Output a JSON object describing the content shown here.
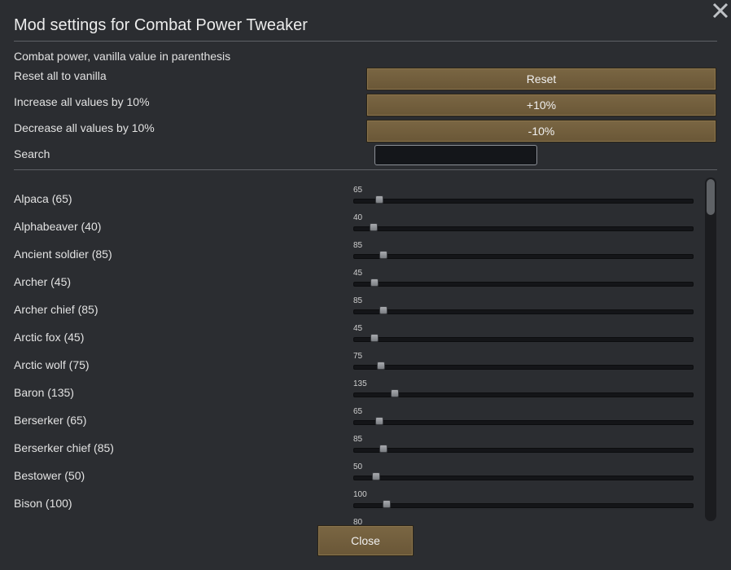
{
  "dialog": {
    "title": "Mod settings for Combat Power Tweaker",
    "subtitle": "Combat power, vanilla value in parenthesis"
  },
  "controls": {
    "reset_label": "Reset all to vanilla",
    "reset_button": "Reset",
    "increase_label": "Increase all values by 10%",
    "increase_button": "+10%",
    "decrease_label": "Decrease all values by 10%",
    "decrease_button": "-10%",
    "search_label": "Search",
    "search_value": ""
  },
  "slider_range": {
    "min": 0,
    "max": 1500
  },
  "creatures": [
    {
      "label": "Alpaca (65)",
      "value": "65"
    },
    {
      "label": "Alphabeaver (40)",
      "value": "40"
    },
    {
      "label": "Ancient soldier (85)",
      "value": "85"
    },
    {
      "label": "Archer (45)",
      "value": "45"
    },
    {
      "label": "Archer chief (85)",
      "value": "85"
    },
    {
      "label": "Arctic fox (45)",
      "value": "45"
    },
    {
      "label": "Arctic wolf (75)",
      "value": "75"
    },
    {
      "label": "Baron (135)",
      "value": "135"
    },
    {
      "label": "Berserker (65)",
      "value": "65"
    },
    {
      "label": "Berserker chief (85)",
      "value": "85"
    },
    {
      "label": "Bestower (50)",
      "value": "50"
    },
    {
      "label": "Bison (100)",
      "value": "100"
    },
    {
      "label": "",
      "value": "80"
    }
  ],
  "footer": {
    "close_button": "Close"
  },
  "icons": {
    "close": "close-x-icon"
  },
  "colors": {
    "accent": "#76623f",
    "background": "#2b2d31"
  }
}
